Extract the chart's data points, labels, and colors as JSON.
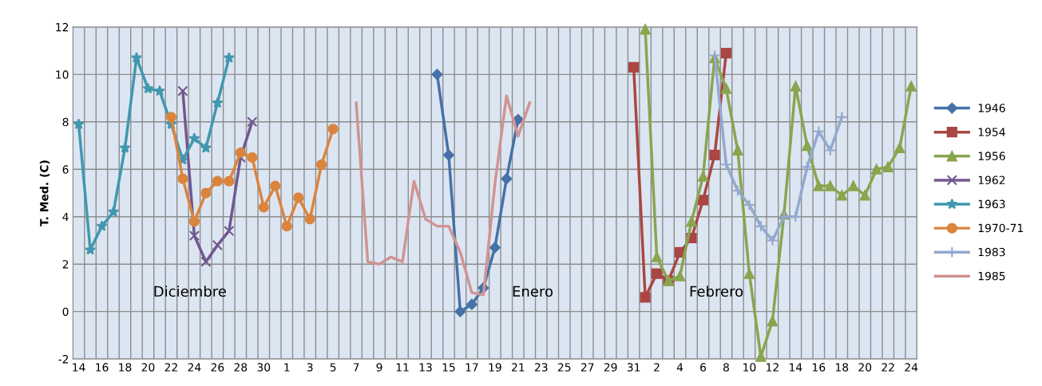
{
  "chart_data": {
    "type": "line",
    "ylabel": "T. Med. (C)",
    "categories": [
      "14",
      null,
      "16",
      null,
      "18",
      null,
      "20",
      null,
      "22",
      null,
      "24",
      null,
      "26",
      null,
      "28",
      null,
      "30",
      null,
      "1",
      null,
      "3",
      null,
      "5",
      null,
      "7",
      null,
      "9",
      null,
      "11",
      null,
      "13",
      null,
      "15",
      null,
      "17",
      null,
      "19",
      null,
      "21",
      null,
      "23",
      null,
      "25",
      null,
      "27",
      null,
      "29",
      null,
      "31",
      null,
      "2",
      null,
      "4",
      null,
      "6",
      null,
      "8",
      null,
      "10",
      null,
      "12",
      null,
      "14",
      null,
      "16",
      null,
      "18",
      null,
      "20",
      null,
      "22",
      null,
      "24"
    ],
    "ylim": [
      -2,
      12
    ],
    "yticks": [
      -2,
      0,
      2,
      4,
      6,
      8,
      10,
      12
    ],
    "grid": true,
    "legend": "right",
    "annotations": [
      "Diciembre",
      "Enero",
      "Febrero"
    ],
    "series": [
      {
        "name": "1946",
        "color": "#4572a7",
        "marker": "diamond",
        "values": [
          null,
          null,
          null,
          null,
          null,
          null,
          null,
          null,
          null,
          null,
          null,
          null,
          null,
          null,
          null,
          null,
          null,
          null,
          null,
          null,
          null,
          null,
          null,
          null,
          null,
          null,
          null,
          null,
          null,
          null,
          null,
          10.0,
          6.6,
          0.0,
          0.3,
          1.0,
          2.7,
          5.6,
          8.1,
          null,
          null,
          null,
          null,
          null,
          null,
          null,
          null,
          null,
          null,
          null,
          null,
          null,
          null,
          null,
          null,
          null,
          null,
          null,
          null,
          null,
          null,
          null,
          null,
          null,
          null,
          null,
          null,
          null,
          null,
          null,
          null,
          null,
          null
        ]
      },
      {
        "name": "1954",
        "color": "#aa4643",
        "marker": "square",
        "values": [
          null,
          null,
          null,
          null,
          null,
          null,
          null,
          null,
          null,
          null,
          null,
          null,
          null,
          null,
          null,
          null,
          null,
          null,
          null,
          null,
          null,
          null,
          null,
          null,
          null,
          null,
          null,
          null,
          null,
          null,
          null,
          null,
          null,
          null,
          null,
          null,
          null,
          null,
          null,
          null,
          null,
          null,
          null,
          null,
          null,
          null,
          null,
          null,
          10.3,
          0.6,
          1.6,
          1.3,
          2.5,
          3.1,
          4.7,
          6.6,
          10.9,
          null,
          null,
          null,
          null,
          null,
          null,
          null,
          null,
          null,
          null,
          null,
          null,
          null,
          null,
          null,
          null
        ]
      },
      {
        "name": "1956",
        "color": "#89a54e",
        "marker": "triangle",
        "values": [
          null,
          null,
          null,
          null,
          null,
          null,
          null,
          null,
          null,
          null,
          null,
          null,
          null,
          null,
          null,
          null,
          null,
          null,
          null,
          null,
          null,
          null,
          null,
          null,
          null,
          null,
          null,
          null,
          null,
          null,
          null,
          null,
          null,
          null,
          null,
          null,
          null,
          null,
          null,
          null,
          null,
          null,
          null,
          null,
          null,
          null,
          null,
          null,
          null,
          11.9,
          2.3,
          1.3,
          1.5,
          3.8,
          5.7,
          10.7,
          9.4,
          6.8,
          1.6,
          -1.9,
          -0.4,
          4.1,
          9.5,
          7.0,
          5.3,
          5.3,
          4.9,
          5.3,
          4.9,
          6.0,
          6.1,
          6.9,
          9.5
        ]
      },
      {
        "name": "1962",
        "color": "#71588f",
        "marker": "cross",
        "values": [
          null,
          null,
          null,
          null,
          null,
          null,
          null,
          null,
          null,
          9.3,
          3.2,
          2.1,
          2.8,
          3.4,
          6.5,
          8.0,
          null,
          null,
          null,
          null,
          null,
          null,
          null,
          null,
          null,
          null,
          null,
          null,
          null,
          null,
          null,
          null,
          null,
          null,
          null,
          null,
          null,
          null,
          null,
          null,
          null,
          null,
          null,
          null,
          null,
          null,
          null,
          null,
          null,
          null,
          null,
          null,
          null,
          null,
          null,
          null,
          null,
          null,
          null,
          null,
          null,
          null,
          null,
          null,
          null,
          null,
          null,
          null,
          null,
          null,
          null,
          null,
          null
        ]
      },
      {
        "name": "1963",
        "color": "#4198af",
        "marker": "star",
        "values": [
          7.9,
          2.6,
          3.6,
          4.2,
          6.9,
          10.7,
          9.4,
          9.3,
          7.9,
          6.4,
          7.3,
          6.9,
          8.8,
          10.7,
          null,
          null,
          null,
          null,
          null,
          null,
          null,
          null,
          null,
          null,
          null,
          null,
          null,
          null,
          null,
          null,
          null,
          null,
          null,
          null,
          null,
          null,
          null,
          null,
          null,
          null,
          null,
          null,
          null,
          null,
          null,
          null,
          null,
          null,
          null,
          null,
          null,
          null,
          null,
          null,
          null,
          null,
          null,
          null,
          null,
          null,
          null,
          null,
          null,
          null,
          null,
          null,
          null,
          null,
          null,
          null,
          null,
          null,
          null
        ]
      },
      {
        "name": "1970-71",
        "color": "#db843d",
        "marker": "circle",
        "values": [
          null,
          null,
          null,
          null,
          null,
          null,
          null,
          null,
          8.2,
          5.6,
          3.8,
          5.0,
          5.5,
          5.5,
          6.7,
          6.5,
          4.4,
          5.3,
          3.6,
          4.8,
          3.9,
          6.2,
          7.7,
          null,
          null,
          null,
          null,
          null,
          null,
          null,
          null,
          null,
          null,
          null,
          null,
          null,
          null,
          null,
          null,
          null,
          null,
          null,
          null,
          null,
          null,
          null,
          null,
          null,
          null,
          null,
          null,
          null,
          null,
          null,
          null,
          null,
          null,
          null,
          null,
          null,
          null,
          null,
          null,
          null,
          null,
          null,
          null,
          null,
          null,
          null,
          null,
          null,
          null
        ]
      },
      {
        "name": "1983",
        "color": "#93a9cf",
        "marker": "plus",
        "values": [
          null,
          null,
          null,
          null,
          null,
          null,
          null,
          null,
          null,
          null,
          null,
          null,
          null,
          null,
          null,
          null,
          null,
          null,
          null,
          null,
          null,
          null,
          null,
          null,
          null,
          null,
          null,
          null,
          null,
          null,
          null,
          null,
          null,
          null,
          null,
          null,
          null,
          null,
          null,
          null,
          null,
          null,
          null,
          null,
          null,
          null,
          null,
          null,
          null,
          null,
          null,
          null,
          null,
          null,
          null,
          10.8,
          6.2,
          5.1,
          4.5,
          3.6,
          3.0,
          4.0,
          4.0,
          6.1,
          7.6,
          6.8,
          8.2,
          null,
          null,
          null,
          null,
          null,
          null
        ]
      },
      {
        "name": "1985",
        "color": "#d19392",
        "marker": "none",
        "values": [
          null,
          null,
          null,
          null,
          null,
          null,
          null,
          null,
          null,
          null,
          null,
          null,
          null,
          null,
          null,
          null,
          null,
          null,
          null,
          null,
          null,
          null,
          null,
          null,
          8.8,
          2.1,
          2.0,
          2.3,
          2.1,
          5.5,
          3.9,
          3.6,
          3.6,
          2.5,
          0.8,
          0.7,
          5.4,
          9.1,
          7.4,
          8.8,
          null,
          null,
          null,
          null,
          null,
          null,
          null,
          null,
          null,
          null,
          null,
          null,
          null,
          null,
          null,
          null,
          null,
          null,
          null,
          null,
          null,
          null,
          null,
          null,
          null,
          null,
          null,
          null,
          null,
          null,
          null,
          null,
          null
        ]
      }
    ]
  }
}
